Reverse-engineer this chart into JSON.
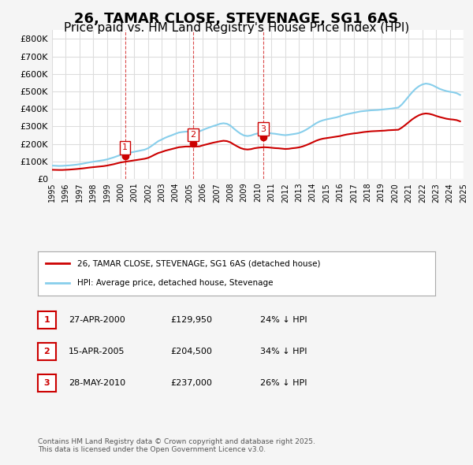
{
  "title": "26, TAMAR CLOSE, STEVENAGE, SG1 6AS",
  "subtitle": "Price paid vs. HM Land Registry's House Price Index (HPI)",
  "title_fontsize": 13,
  "subtitle_fontsize": 11,
  "ylabel": "",
  "xlabel": "",
  "ylim": [
    0,
    850000
  ],
  "yticks": [
    0,
    100000,
    200000,
    300000,
    400000,
    500000,
    600000,
    700000,
    800000
  ],
  "ytick_labels": [
    "£0",
    "£100K",
    "£200K",
    "£300K",
    "£400K",
    "£500K",
    "£600K",
    "£700K",
    "£800K"
  ],
  "background_color": "#f5f5f5",
  "plot_background": "#ffffff",
  "grid_color": "#dddddd",
  "red_color": "#cc0000",
  "blue_color": "#87CEEB",
  "sale_color": "#cc0000",
  "sales": [
    {
      "num": 1,
      "year": 2000.32,
      "price": 129950,
      "label": "1",
      "x_label_offset": 0
    },
    {
      "num": 2,
      "year": 2005.29,
      "price": 204500,
      "label": "2",
      "x_label_offset": 0
    },
    {
      "num": 3,
      "year": 2010.41,
      "price": 237000,
      "label": "3",
      "x_label_offset": 0
    }
  ],
  "sale_vline_color": "#cc0000",
  "legend_entries": [
    "26, TAMAR CLOSE, STEVENAGE, SG1 6AS (detached house)",
    "HPI: Average price, detached house, Stevenage"
  ],
  "table_entries": [
    {
      "num": "1",
      "date": "27-APR-2000",
      "price": "£129,950",
      "hpi": "24% ↓ HPI"
    },
    {
      "num": "2",
      "date": "15-APR-2005",
      "price": "£204,500",
      "hpi": "34% ↓ HPI"
    },
    {
      "num": "3",
      "date": "28-MAY-2010",
      "price": "£237,000",
      "hpi": "26% ↓ HPI"
    }
  ],
  "footer": "Contains HM Land Registry data © Crown copyright and database right 2025.\nThis data is licensed under the Open Government Licence v3.0.",
  "hpi_data": {
    "years": [
      1995.0,
      1995.25,
      1995.5,
      1995.75,
      1996.0,
      1996.25,
      1996.5,
      1996.75,
      1997.0,
      1997.25,
      1997.5,
      1997.75,
      1998.0,
      1998.25,
      1998.5,
      1998.75,
      1999.0,
      1999.25,
      1999.5,
      1999.75,
      2000.0,
      2000.25,
      2000.5,
      2000.75,
      2001.0,
      2001.25,
      2001.5,
      2001.75,
      2002.0,
      2002.25,
      2002.5,
      2002.75,
      2003.0,
      2003.25,
      2003.5,
      2003.75,
      2004.0,
      2004.25,
      2004.5,
      2004.75,
      2005.0,
      2005.25,
      2005.5,
      2005.75,
      2006.0,
      2006.25,
      2006.5,
      2006.75,
      2007.0,
      2007.25,
      2007.5,
      2007.75,
      2008.0,
      2008.25,
      2008.5,
      2008.75,
      2009.0,
      2009.25,
      2009.5,
      2009.75,
      2010.0,
      2010.25,
      2010.5,
      2010.75,
      2011.0,
      2011.25,
      2011.5,
      2011.75,
      2012.0,
      2012.25,
      2012.5,
      2012.75,
      2013.0,
      2013.25,
      2013.5,
      2013.75,
      2014.0,
      2014.25,
      2014.5,
      2014.75,
      2015.0,
      2015.25,
      2015.5,
      2015.75,
      2016.0,
      2016.25,
      2016.5,
      2016.75,
      2017.0,
      2017.25,
      2017.5,
      2017.75,
      2018.0,
      2018.25,
      2018.5,
      2018.75,
      2019.0,
      2019.25,
      2019.5,
      2019.75,
      2020.0,
      2020.25,
      2020.5,
      2020.75,
      2021.0,
      2021.25,
      2021.5,
      2021.75,
      2022.0,
      2022.25,
      2022.5,
      2022.75,
      2023.0,
      2023.25,
      2023.5,
      2023.75,
      2024.0,
      2024.25,
      2024.5,
      2024.75
    ],
    "values": [
      76000,
      75000,
      74000,
      74500,
      76000,
      77000,
      79000,
      81000,
      84000,
      87000,
      91000,
      95000,
      98000,
      101000,
      104000,
      107000,
      111000,
      117000,
      123000,
      130000,
      137000,
      142000,
      147000,
      151000,
      155000,
      159000,
      163000,
      167000,
      175000,
      188000,
      202000,
      216000,
      225000,
      235000,
      243000,
      250000,
      258000,
      265000,
      268000,
      270000,
      271000,
      272000,
      271000,
      272000,
      280000,
      288000,
      295000,
      302000,
      308000,
      315000,
      318000,
      315000,
      305000,
      288000,
      272000,
      258000,
      248000,
      245000,
      248000,
      255000,
      260000,
      263000,
      265000,
      263000,
      260000,
      258000,
      255000,
      252000,
      250000,
      252000,
      255000,
      258000,
      262000,
      270000,
      280000,
      292000,
      305000,
      318000,
      328000,
      335000,
      340000,
      344000,
      348000,
      352000,
      358000,
      365000,
      370000,
      374000,
      378000,
      382000,
      386000,
      388000,
      390000,
      392000,
      393000,
      394000,
      396000,
      398000,
      400000,
      402000,
      405000,
      408000,
      425000,
      448000,
      472000,
      495000,
      515000,
      530000,
      540000,
      545000,
      542000,
      535000,
      525000,
      515000,
      508000,
      502000,
      498000,
      495000,
      490000,
      480000
    ]
  },
  "house_data": {
    "years": [
      1995.0,
      1995.25,
      1995.5,
      1995.75,
      1996.0,
      1996.25,
      1996.5,
      1996.75,
      1997.0,
      1997.25,
      1997.5,
      1997.75,
      1998.0,
      1998.25,
      1998.5,
      1998.75,
      1999.0,
      1999.25,
      1999.5,
      1999.75,
      2000.0,
      2000.25,
      2000.5,
      2000.75,
      2001.0,
      2001.25,
      2001.5,
      2001.75,
      2002.0,
      2002.25,
      2002.5,
      2002.75,
      2003.0,
      2003.25,
      2003.5,
      2003.75,
      2004.0,
      2004.25,
      2004.5,
      2004.75,
      2005.0,
      2005.25,
      2005.5,
      2005.75,
      2006.0,
      2006.25,
      2006.5,
      2006.75,
      2007.0,
      2007.25,
      2007.5,
      2007.75,
      2008.0,
      2008.25,
      2008.5,
      2008.75,
      2009.0,
      2009.25,
      2009.5,
      2009.75,
      2010.0,
      2010.25,
      2010.5,
      2010.75,
      2011.0,
      2011.25,
      2011.5,
      2011.75,
      2012.0,
      2012.25,
      2012.5,
      2012.75,
      2013.0,
      2013.25,
      2013.5,
      2013.75,
      2014.0,
      2014.25,
      2014.5,
      2014.75,
      2015.0,
      2015.25,
      2015.5,
      2015.75,
      2016.0,
      2016.25,
      2016.5,
      2016.75,
      2017.0,
      2017.25,
      2017.5,
      2017.75,
      2018.0,
      2018.25,
      2018.5,
      2018.75,
      2019.0,
      2019.25,
      2019.5,
      2019.75,
      2020.0,
      2020.25,
      2020.5,
      2020.75,
      2021.0,
      2021.25,
      2021.5,
      2021.75,
      2022.0,
      2022.25,
      2022.5,
      2022.75,
      2023.0,
      2023.25,
      2023.5,
      2023.75,
      2024.0,
      2024.25,
      2024.5,
      2024.75
    ],
    "values": [
      52000,
      51500,
      51000,
      51000,
      52000,
      53000,
      54500,
      56000,
      58000,
      60000,
      62500,
      65000,
      67000,
      69000,
      71000,
      73000,
      76000,
      80000,
      84000,
      89000,
      94000,
      97000,
      100000,
      103000,
      106000,
      109000,
      112000,
      115000,
      120000,
      129000,
      139000,
      148000,
      154000,
      161000,
      166000,
      171000,
      176000,
      181000,
      183000,
      185000,
      185000,
      186000,
      185000,
      186000,
      192000,
      197000,
      202000,
      207000,
      211000,
      215000,
      218000,
      216000,
      209000,
      197000,
      186000,
      176000,
      170000,
      168000,
      170000,
      175000,
      178000,
      180000,
      181000,
      180000,
      178000,
      176000,
      175000,
      173000,
      171000,
      172000,
      175000,
      177000,
      180000,
      185000,
      192000,
      200000,
      209000,
      218000,
      225000,
      230000,
      233000,
      236000,
      239000,
      242000,
      245000,
      250000,
      254000,
      257000,
      260000,
      262000,
      265000,
      268000,
      270000,
      272000,
      273000,
      274000,
      275000,
      276000,
      278000,
      279000,
      280000,
      281000,
      293000,
      308000,
      324000,
      340000,
      353000,
      364000,
      371000,
      374000,
      372000,
      367000,
      360000,
      354000,
      349000,
      344000,
      341000,
      339000,
      336000,
      329000
    ]
  }
}
